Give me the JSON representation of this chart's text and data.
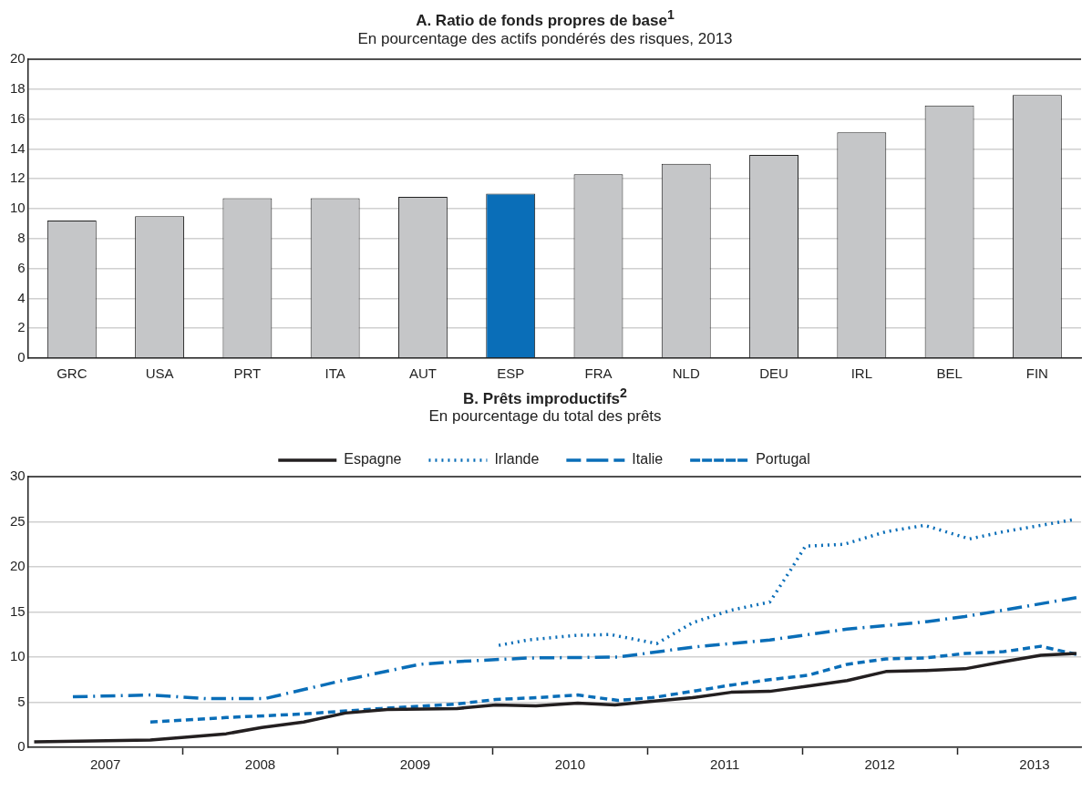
{
  "chart_data": [
    {
      "type": "bar",
      "title": "A. Ratio de fonds propres de base$^{1}$",
      "subtitle": "En pourcentage des actifs pondérés des risques, 2013",
      "categories": [
        "GRC",
        "USA",
        "PRT",
        "ITA",
        "AUT",
        "ESP",
        "FRA",
        "NLD",
        "DEU",
        "IRL",
        "BEL",
        "FIN"
      ],
      "values": [
        9.2,
        9.5,
        10.7,
        10.7,
        10.8,
        11.0,
        12.3,
        13.0,
        13.6,
        15.1,
        16.9,
        17.6
      ],
      "colors": [
        "#c5c6c8",
        "#c5c6c8",
        "#c5c6c8",
        "#c5c6c8",
        "#c5c6c8",
        "#0a6eb8",
        "#c5c6c8",
        "#c5c6c8",
        "#c5c6c8",
        "#c5c6c8",
        "#c5c6c8",
        "#c5c6c8"
      ],
      "ylim": [
        0,
        20
      ],
      "yticks": [
        0,
        2,
        4,
        6,
        8,
        10,
        12,
        14,
        16,
        18,
        20
      ],
      "grid": "y",
      "legend": false
    },
    {
      "type": "line",
      "title": "B. Prêts improductifs$^{2}$",
      "subtitle": "En pourcentage du total des prêts",
      "xlim": [
        2007,
        2013.8
      ],
      "xticks": [
        {
          "value": 2007.5,
          "label": "2007"
        },
        {
          "value": 2008,
          "label": null
        },
        {
          "value": 2008.5,
          "label": "2008"
        },
        {
          "value": 2009,
          "label": null
        },
        {
          "value": 2009.5,
          "label": "2009"
        },
        {
          "value": 2010,
          "label": null
        },
        {
          "value": 2010.5,
          "label": "2010"
        },
        {
          "value": 2011,
          "label": null
        },
        {
          "value": 2011.5,
          "label": "2011"
        },
        {
          "value": 2012,
          "label": null
        },
        {
          "value": 2012.5,
          "label": "2012"
        },
        {
          "value": 2013,
          "label": null
        },
        {
          "value": 2013.5,
          "label": "2013"
        }
      ],
      "ylim": [
        0,
        30
      ],
      "yticks": [
        0,
        5,
        10,
        15,
        20,
        25,
        30
      ],
      "grid": "y",
      "legend": "top",
      "marker": "none",
      "series": [
        {
          "name": "Espagne",
          "color": "#231f20",
          "line_style": "solid",
          "x": [
            2007.04,
            2007.79,
            2008.01,
            2008.28,
            2008.51,
            2008.78,
            2009.05,
            2009.32,
            2009.77,
            2010.02,
            2010.28,
            2010.55,
            2010.79,
            2011.03,
            2011.29,
            2011.54,
            2011.79,
            2012.04,
            2012.29,
            2012.54,
            2012.79,
            2013.05,
            2013.3,
            2013.54,
            2013.77
          ],
          "values": [
            0.6,
            0.8,
            1.1,
            1.5,
            2.2,
            2.8,
            3.8,
            4.2,
            4.3,
            4.7,
            4.6,
            4.9,
            4.7,
            5.1,
            5.5,
            6.1,
            6.2,
            6.8,
            7.4,
            8.4,
            8.5,
            8.7,
            9.5,
            10.2,
            10.4
          ]
        },
        {
          "name": "Irlande",
          "color": "#0a6eb8",
          "line_style": "dotted",
          "x": [
            2010.04,
            2010.23,
            2010.53,
            2010.76,
            2010.94,
            2011.06,
            2011.29,
            2011.54,
            2011.79,
            2011.93,
            2012.02,
            2012.27,
            2012.54,
            2012.79,
            2013.08,
            2013.3,
            2013.54,
            2013.74
          ],
          "values": [
            11.3,
            11.9,
            12.4,
            12.5,
            11.9,
            11.5,
            13.8,
            15.2,
            16.1,
            19.8,
            22.3,
            22.5,
            23.9,
            24.6,
            23.1,
            23.9,
            24.6,
            25.2
          ]
        },
        {
          "name": "Italie",
          "color": "#0a6eb8",
          "line_style": "dashdot",
          "x": [
            2007.29,
            2007.79,
            2008.15,
            2008.53,
            2009.03,
            2009.53,
            2009.77,
            2010.23,
            2010.81,
            2011.29,
            2011.79,
            2012.29,
            2012.79,
            2013.05,
            2013.3,
            2013.77
          ],
          "values": [
            5.6,
            5.8,
            5.4,
            5.4,
            7.4,
            9.2,
            9.5,
            9.9,
            10.0,
            11.1,
            11.9,
            13.1,
            13.9,
            14.5,
            15.2,
            16.6
          ]
        },
        {
          "name": "Portugal",
          "color": "#0a6eb8",
          "line_style": "dashed",
          "x": [
            2007.79,
            2008.28,
            2008.78,
            2009.28,
            2009.77,
            2010.02,
            2010.28,
            2010.55,
            2010.81,
            2011.03,
            2011.29,
            2011.54,
            2011.79,
            2012.04,
            2012.29,
            2012.54,
            2012.79,
            2013.05,
            2013.3,
            2013.54,
            2013.77
          ],
          "values": [
            2.8,
            3.3,
            3.7,
            4.3,
            4.8,
            5.3,
            5.5,
            5.8,
            5.2,
            5.5,
            6.2,
            6.9,
            7.5,
            8.0,
            9.2,
            9.8,
            9.9,
            10.4,
            10.6,
            11.2,
            10.3
          ]
        }
      ]
    }
  ]
}
